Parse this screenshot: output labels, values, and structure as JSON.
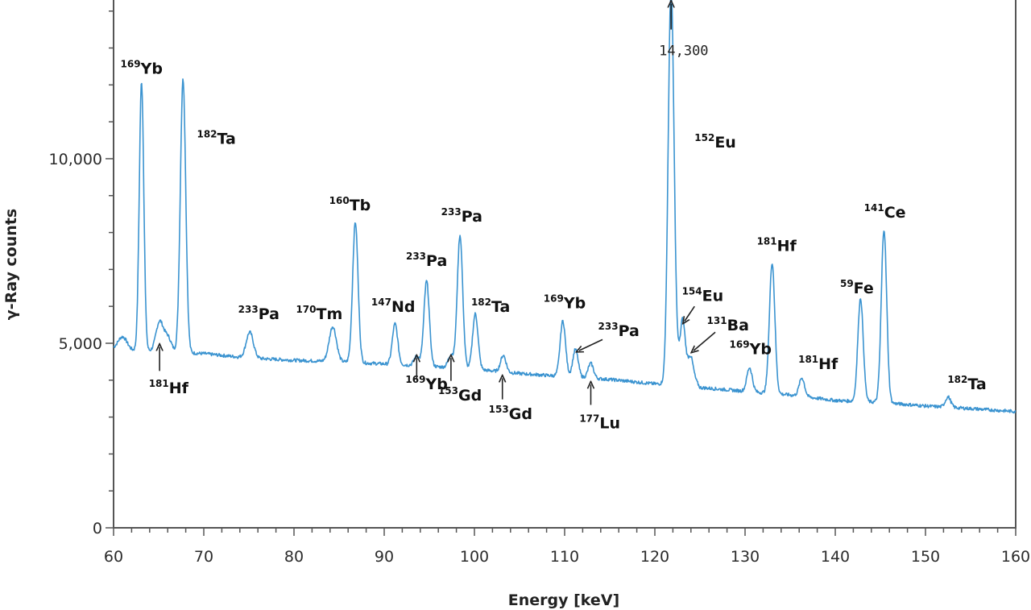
{
  "chart_data": {
    "type": "line",
    "xlabel": "Energy [keV]",
    "ylabel": "γ-Ray counts",
    "xlim": [
      60,
      160
    ],
    "ylim": [
      0,
      14300
    ],
    "xticks": [
      60,
      70,
      80,
      90,
      100,
      110,
      120,
      130,
      140,
      150,
      160
    ],
    "yticks": [
      {
        "value": 0,
        "label": "0"
      },
      {
        "value": 5000,
        "label": "5,000"
      },
      {
        "value": 10000,
        "label": "10,000"
      }
    ],
    "grid": false,
    "line_color": "#3a93d0",
    "baseline": [
      [
        60,
        4850
      ],
      [
        62,
        4800
      ],
      [
        65,
        4780
      ],
      [
        70,
        4720
      ],
      [
        75,
        4600
      ],
      [
        80,
        4540
      ],
      [
        85,
        4500
      ],
      [
        90,
        4440
      ],
      [
        95,
        4380
      ],
      [
        100,
        4300
      ],
      [
        105,
        4180
      ],
      [
        110,
        4100
      ],
      [
        115,
        4020
      ],
      [
        120,
        3900
      ],
      [
        121,
        3900
      ],
      [
        123,
        4700
      ],
      [
        125,
        3800
      ],
      [
        130,
        3700
      ],
      [
        135,
        3600
      ],
      [
        140,
        3450
      ],
      [
        145,
        3400
      ],
      [
        150,
        3300
      ],
      [
        155,
        3230
      ],
      [
        160,
        3150
      ]
    ],
    "peaks": [
      {
        "x": 61.0,
        "height": 350,
        "width": 0.5
      },
      {
        "x": 63.1,
        "height": 7300,
        "width": 0.25
      },
      {
        "x": 65.1,
        "height": 800,
        "width": 0.4
      },
      {
        "x": 66.0,
        "height": 400,
        "width": 0.4
      },
      {
        "x": 67.7,
        "height": 7400,
        "width": 0.3
      },
      {
        "x": 75.1,
        "height": 700,
        "width": 0.4
      },
      {
        "x": 84.3,
        "height": 950,
        "width": 0.4
      },
      {
        "x": 86.8,
        "height": 3800,
        "width": 0.3
      },
      {
        "x": 91.2,
        "height": 1100,
        "width": 0.3
      },
      {
        "x": 93.6,
        "height": 250,
        "width": 0.3
      },
      {
        "x": 94.7,
        "height": 2300,
        "width": 0.3
      },
      {
        "x": 97.4,
        "height": 350,
        "width": 0.3
      },
      {
        "x": 98.4,
        "height": 3600,
        "width": 0.3
      },
      {
        "x": 100.1,
        "height": 1500,
        "width": 0.3
      },
      {
        "x": 103.2,
        "height": 450,
        "width": 0.3
      },
      {
        "x": 109.8,
        "height": 1500,
        "width": 0.3
      },
      {
        "x": 111.2,
        "height": 750,
        "width": 0.3
      },
      {
        "x": 112.9,
        "height": 400,
        "width": 0.3
      },
      {
        "x": 121.8,
        "height": 10500,
        "width": 0.32
      },
      {
        "x": 123.1,
        "height": 1000,
        "width": 0.25
      },
      {
        "x": 124.0,
        "height": 400,
        "width": 0.25
      },
      {
        "x": 130.5,
        "height": 650,
        "width": 0.3
      },
      {
        "x": 133.0,
        "height": 3550,
        "width": 0.3
      },
      {
        "x": 136.3,
        "height": 500,
        "width": 0.3
      },
      {
        "x": 142.8,
        "height": 2800,
        "width": 0.3
      },
      {
        "x": 145.4,
        "height": 4700,
        "width": 0.3
      },
      {
        "x": 152.5,
        "height": 280,
        "width": 0.3
      }
    ],
    "annotations": [
      {
        "mass": "169",
        "element": "Yb",
        "x": 63.1,
        "y": 12300,
        "arrow": false
      },
      {
        "mass": "182",
        "element": "Ta",
        "x": 71.4,
        "y": 10400,
        "arrow": false
      },
      {
        "mass": "181",
        "element": "Hf",
        "x": 66.1,
        "y": 3650,
        "arrow": true,
        "arrow_x": 65.1,
        "arrow_from_y": 4250,
        "arrow_to_y": 4900
      },
      {
        "mass": "233",
        "element": "Pa",
        "x": 76.1,
        "y": 5650,
        "arrow": false
      },
      {
        "mass": "170",
        "element": "Tm",
        "x": 82.8,
        "y": 5650,
        "arrow": false
      },
      {
        "mass": "160",
        "element": "Tb",
        "x": 86.2,
        "y": 8600,
        "arrow": false
      },
      {
        "mass": "147",
        "element": "Nd",
        "x": 91.0,
        "y": 5850,
        "arrow": false
      },
      {
        "mass": "233",
        "element": "Pa",
        "x": 94.7,
        "y": 7100,
        "arrow": false
      },
      {
        "mass": "233",
        "element": "Pa",
        "x": 98.6,
        "y": 8300,
        "arrow": false
      },
      {
        "mass": "182",
        "element": "Ta",
        "x": 101.8,
        "y": 5850,
        "arrow": false
      },
      {
        "mass": "169",
        "element": "Yb",
        "x": 94.7,
        "y": 3750,
        "arrow": true,
        "arrow_x": 93.6,
        "arrow_from_y": 4000,
        "arrow_to_y": 4600
      },
      {
        "mass": "153",
        "element": "Gd",
        "x": 98.4,
        "y": 3450,
        "arrow": true,
        "arrow_x": 97.4,
        "arrow_from_y": 3980,
        "arrow_to_y": 4600
      },
      {
        "mass": "153",
        "element": "Gd",
        "x": 104.0,
        "y": 2950,
        "arrow": true,
        "arrow_x": 103.1,
        "arrow_from_y": 3480,
        "arrow_to_y": 4050
      },
      {
        "mass": "169",
        "element": "Yb",
        "x": 110.0,
        "y": 5950,
        "arrow": false
      },
      {
        "mass": "233",
        "element": "Pa",
        "x": 116.0,
        "y": 5200,
        "arrow": true,
        "arrow_x": 114.2,
        "arrow_from_y": 5100,
        "arrow_to_y": 4800,
        "arrow_to_x": 111.6
      },
      {
        "mass": "177",
        "element": "Lu",
        "x": 113.9,
        "y": 2700,
        "arrow": true,
        "arrow_x": 112.9,
        "arrow_from_y": 3330,
        "arrow_to_y": 3880
      },
      {
        "mass": "152",
        "element": "Eu",
        "x": 126.7,
        "y": 10300,
        "arrow": false
      },
      {
        "mass": "154",
        "element": "Eu",
        "x": 125.3,
        "y": 6150,
        "arrow": true,
        "arrow_x": 124.4,
        "arrow_from_y": 6000,
        "arrow_to_y": 5600,
        "arrow_to_x": 123.3
      },
      {
        "mass": "131",
        "element": "Ba",
        "x": 128.1,
        "y": 5350,
        "arrow": true,
        "arrow_x": 126.7,
        "arrow_from_y": 5300,
        "arrow_to_y": 4800,
        "arrow_to_x": 124.3
      },
      {
        "mass": "169",
        "element": "Yb",
        "x": 130.6,
        "y": 4700,
        "arrow": false
      },
      {
        "mass": "181",
        "element": "Hf",
        "x": 133.5,
        "y": 7500,
        "arrow": false
      },
      {
        "mass": "181",
        "element": "Hf",
        "x": 138.1,
        "y": 4300,
        "arrow": false
      },
      {
        "mass": "59",
        "element": "Fe",
        "x": 142.4,
        "y": 6350,
        "arrow": false
      },
      {
        "mass": "141",
        "element": "Ce",
        "x": 145.5,
        "y": 8400,
        "arrow": false
      },
      {
        "mass": "182",
        "element": "Ta",
        "x": 154.6,
        "y": 3750,
        "arrow": false
      }
    ],
    "offscale_note": {
      "text": "14,300",
      "x": 123.2,
      "y": 12800,
      "arrow_x": 121.8,
      "arrow_from_y": 13500,
      "arrow_to_y": 14200
    }
  }
}
